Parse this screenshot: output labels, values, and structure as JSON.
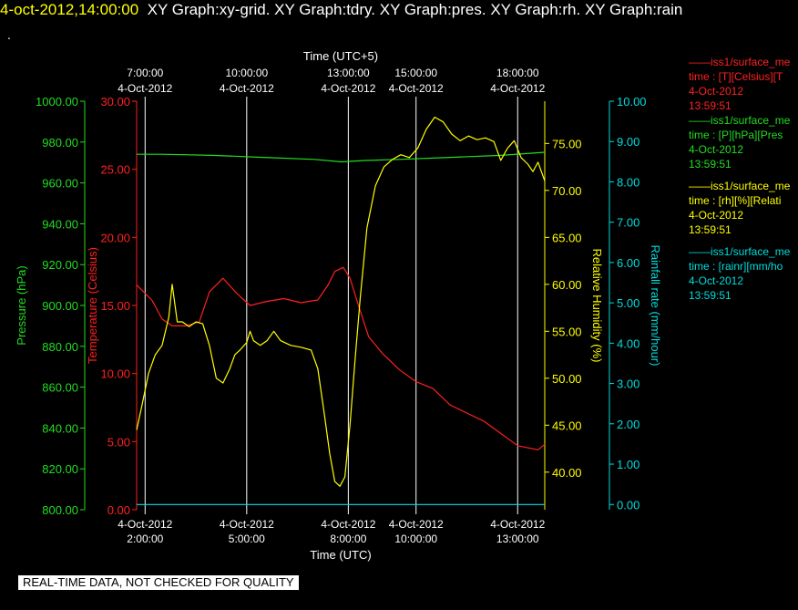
{
  "header": {
    "date": "4-oct-2012,14:00:00",
    "graphs": "XY Graph:xy-grid.  XY Graph:tdry.  XY Graph:pres.  XY Graph:rh.  XY Graph:rain",
    "dot": "."
  },
  "footer": "REAL-TIME DATA, NOT CHECKED FOR QUALITY",
  "legend": [
    {
      "name": "iss1/surface_me",
      "line2": "time : [T][Celsius][T",
      "date": "4-Oct-2012",
      "time": "13:59:51",
      "color": "#ff2020"
    },
    {
      "name": "iss1/surface_me",
      "line2": "time : [P][hPa][Pres",
      "date": "4-Oct-2012",
      "time": "13:59:51",
      "color": "#22dd22"
    },
    {
      "name": "iss1/surface_me",
      "line2": "time : [rh][%][Relati",
      "date": "4-Oct-2012",
      "time": "13:59:51",
      "color": "#ffff00"
    },
    {
      "name": "iss1/surface_me",
      "line2": "time : [rainr][mm/ho",
      "date": "4-Oct-2012",
      "time": "13:59:51",
      "color": "#00dddd"
    }
  ],
  "colors": {
    "temperature": "#ff2020",
    "pressure": "#22dd22",
    "humidity": "#ffff00",
    "rain": "#00dddd",
    "grid": "#ffffff"
  },
  "chart_data": {
    "type": "line",
    "xlabel_bottom": "Time (UTC)",
    "xlabel_top": "Time (UTC+5)",
    "xlim": [
      1.75,
      13.8
    ],
    "grid": true,
    "ticks_bottom": [
      {
        "x": 2,
        "line1": "4-Oct-2012",
        "line2": "2:00:00"
      },
      {
        "x": 5,
        "line1": "4-Oct-2012",
        "line2": "5:00:00"
      },
      {
        "x": 8,
        "line1": "4-Oct-2012",
        "line2": "8:00:00"
      },
      {
        "x": 10,
        "line1": "4-Oct-2012",
        "line2": "10:00:00"
      },
      {
        "x": 13,
        "line1": "4-Oct-2012",
        "line2": "13:00:00"
      }
    ],
    "ticks_top": [
      {
        "x": 2,
        "line1": "7:00:00",
        "line2": "4-Oct-2012"
      },
      {
        "x": 5,
        "line1": "10:00:00",
        "line2": "4-Oct-2012"
      },
      {
        "x": 8,
        "line1": "13:00:00",
        "line2": "4-Oct-2012"
      },
      {
        "x": 10,
        "line1": "15:00:00",
        "line2": "4-Oct-2012"
      },
      {
        "x": 13,
        "line1": "18:00:00",
        "line2": "4-Oct-2012"
      }
    ],
    "axes": {
      "pressure": {
        "label": "Pressure (hPa)",
        "ylim": [
          800,
          1000
        ],
        "ticks": [
          "800.00",
          "820.00",
          "840.00",
          "860.00",
          "880.00",
          "900.00",
          "920.00",
          "940.00",
          "960.00",
          "980.00",
          "1000.00"
        ]
      },
      "temperature": {
        "label": "Temperature (Celsius)",
        "ylim": [
          0,
          30
        ],
        "ticks": [
          "0.00",
          "5.00",
          "10.00",
          "15.00",
          "20.00",
          "25.00",
          "30.00"
        ]
      },
      "humidity": {
        "label": "Relative Humidity (%)",
        "ylim": [
          36,
          79.5
        ],
        "ticks": [
          "40.00",
          "45.00",
          "50.00",
          "55.00",
          "60.00",
          "65.00",
          "70.00",
          "75.00"
        ]
      },
      "rain": {
        "label": "Rainfall rate (mm/hour)",
        "ylim": [
          -0.13,
          10
        ],
        "ticks": [
          "0.00",
          "1.00",
          "2.00",
          "3.00",
          "4.00",
          "5.00",
          "6.00",
          "7.00",
          "8.00",
          "9.00",
          "10.00"
        ]
      }
    },
    "series": [
      {
        "name": "Temperature",
        "axis": "temperature",
        "x": [
          1.75,
          2.2,
          2.5,
          2.8,
          3.2,
          3.6,
          3.9,
          4.3,
          4.7,
          5.1,
          5.6,
          6.1,
          6.6,
          7.1,
          7.4,
          7.6,
          7.85,
          8.05,
          8.3,
          8.6,
          9.0,
          9.5,
          10.0,
          10.5,
          11.0,
          11.5,
          12.0,
          12.5,
          13.0,
          13.4,
          13.6,
          13.8
        ],
        "y": [
          16.5,
          15.4,
          14.0,
          13.5,
          13.5,
          13.8,
          16.0,
          17.0,
          15.9,
          15.0,
          15.3,
          15.5,
          15.2,
          15.4,
          16.5,
          17.5,
          17.8,
          17.0,
          15.0,
          12.7,
          11.5,
          10.3,
          9.4,
          8.9,
          7.7,
          7.1,
          6.5,
          5.6,
          4.7,
          4.5,
          4.4,
          4.8
        ]
      },
      {
        "name": "Pressure",
        "axis": "pressure",
        "x": [
          1.75,
          2.5,
          4.0,
          5.5,
          7.0,
          7.8,
          8.5,
          9.5,
          11.0,
          12.5,
          13.8
        ],
        "y": [
          974.0,
          974.0,
          973.5,
          972.5,
          971.5,
          970.3,
          971.0,
          971.5,
          972.5,
          973.5,
          975.0
        ]
      },
      {
        "name": "Relative Humidity",
        "axis": "humidity",
        "x": [
          1.75,
          1.9,
          2.1,
          2.3,
          2.5,
          2.7,
          2.8,
          2.95,
          3.1,
          3.3,
          3.5,
          3.7,
          3.9,
          4.1,
          4.3,
          4.5,
          4.65,
          4.8,
          5.0,
          5.1,
          5.2,
          5.4,
          5.6,
          5.8,
          6.0,
          6.3,
          6.6,
          6.9,
          7.1,
          7.3,
          7.45,
          7.6,
          7.75,
          7.9,
          8.05,
          8.2,
          8.35,
          8.55,
          8.8,
          9.05,
          9.3,
          9.55,
          9.8,
          10.05,
          10.3,
          10.55,
          10.8,
          11.05,
          11.3,
          11.55,
          11.8,
          12.05,
          12.3,
          12.5,
          12.7,
          12.9,
          13.1,
          13.3,
          13.45,
          13.6,
          13.8
        ],
        "y": [
          44.5,
          47.0,
          50.5,
          52.5,
          53.5,
          56.5,
          60.0,
          56.0,
          56.0,
          55.5,
          56.0,
          55.8,
          53.5,
          50.0,
          49.5,
          51.0,
          52.5,
          53.0,
          53.8,
          55.0,
          54.0,
          53.5,
          54.0,
          55.0,
          54.0,
          53.5,
          53.3,
          53.0,
          51.0,
          46.0,
          42.0,
          39.0,
          38.5,
          39.5,
          45.0,
          52.0,
          58.5,
          66.0,
          70.5,
          72.5,
          73.3,
          73.8,
          73.5,
          74.5,
          76.5,
          77.8,
          77.3,
          76.0,
          75.3,
          75.8,
          75.4,
          75.6,
          75.2,
          73.2,
          74.5,
          75.3,
          73.5,
          72.8,
          72.0,
          73.0,
          71.0
        ]
      },
      {
        "name": "Rainfall rate",
        "axis": "rain",
        "x": [
          1.75,
          13.8
        ],
        "y": [
          0.0,
          0.0
        ]
      }
    ]
  }
}
